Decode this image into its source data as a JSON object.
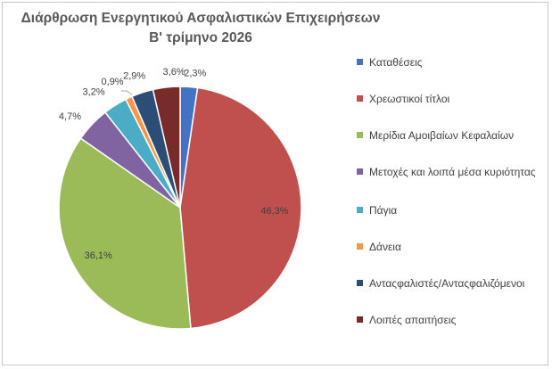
{
  "chart_data": {
    "type": "pie",
    "title_line1": "Διάρθρωση Ενεργητικού Ασφαλιστικών Επιχειρήσεων",
    "title_line2": "Β' τρίμηνο 2026",
    "categories": [
      "Καταθέσεις",
      "Χρεωστικοί τίτλοι",
      "Μερίδια Αμοιβαίων Κεφαλαίων",
      "Μετοχές και λοιπά μέσα κυριότητας",
      "Πάγια",
      "Δάνεια",
      "Ανταςφαλιστές/Ανταςφαλιζόμενοι",
      "Λοιπές απαιτήσεις"
    ],
    "values": [
      2.3,
      46.3,
      36.1,
      4.7,
      3.2,
      0.9,
      2.9,
      3.6
    ],
    "labels": [
      "2,3%",
      "46,3%",
      "36,1%",
      "4,7%",
      "3,2%",
      "0,9%",
      "2,9%",
      "3,6%"
    ],
    "colors": [
      "#4472c4",
      "#c0504d",
      "#9bbb59",
      "#8064a2",
      "#4bacc6",
      "#f79646",
      "#2c4d75",
      "#772c2a"
    ],
    "legend_position": "right"
  }
}
